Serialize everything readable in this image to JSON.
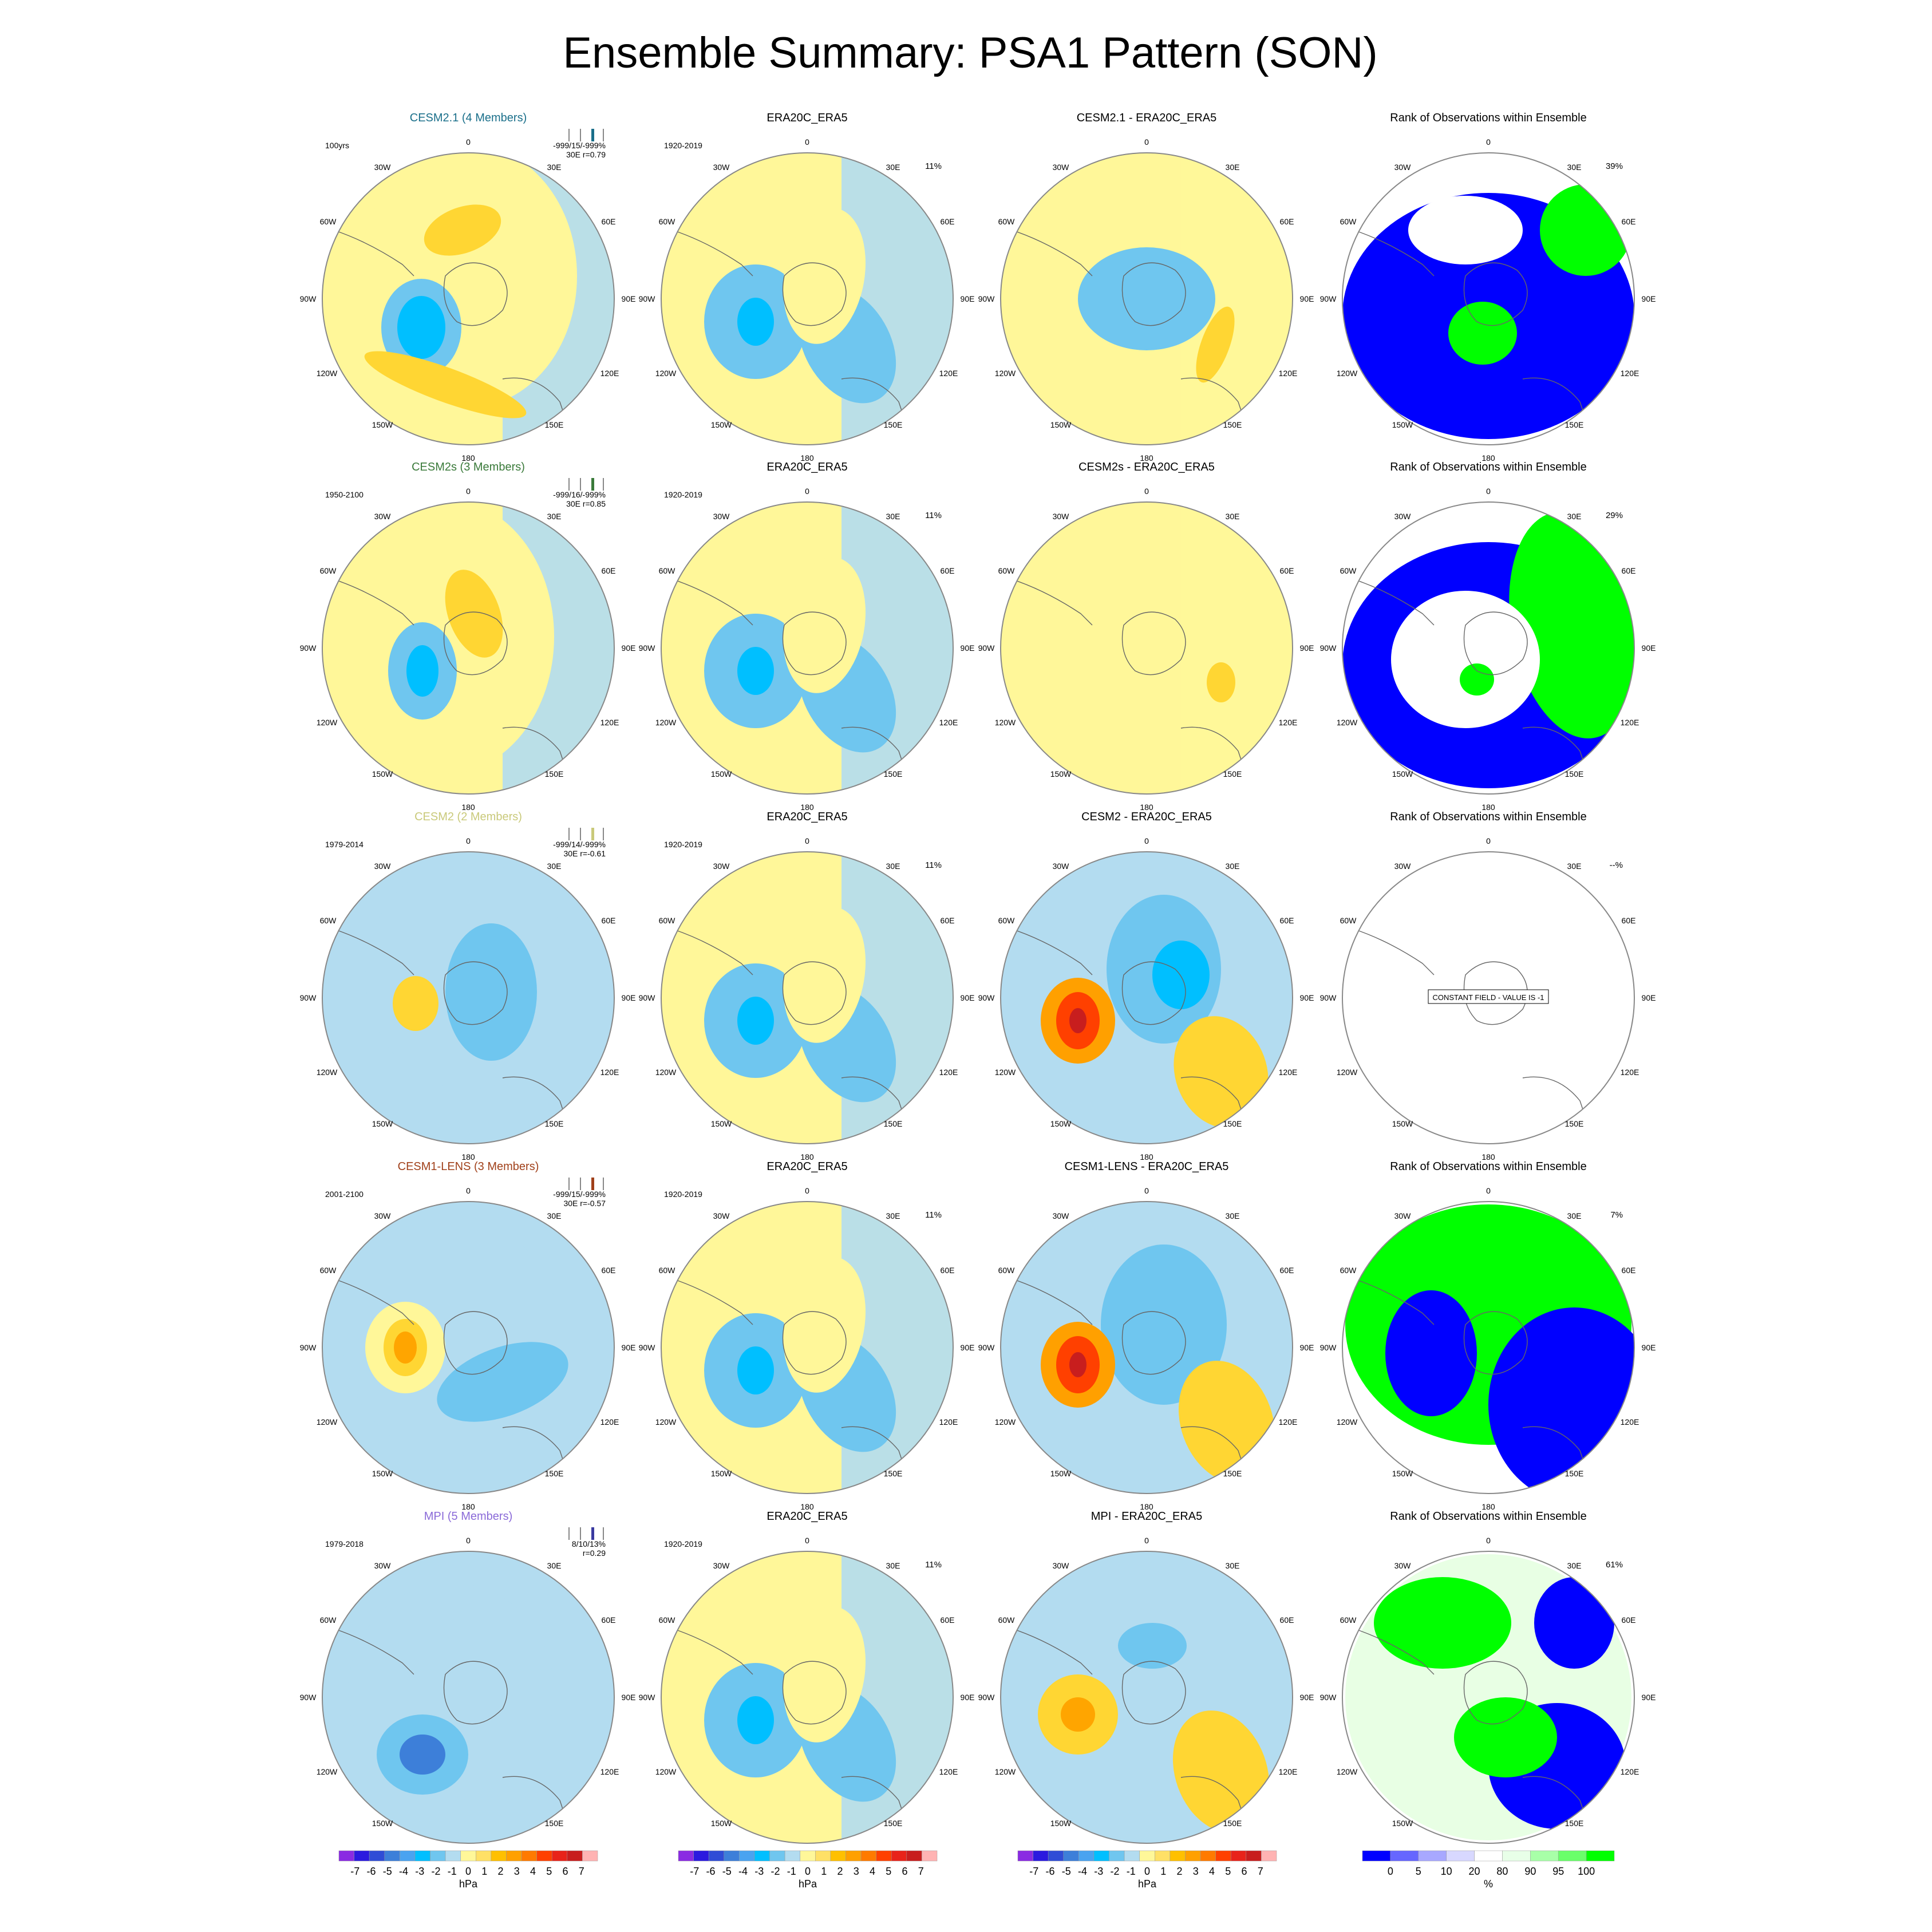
{
  "title": "Ensemble Summary: PSA1 Pattern (SON)",
  "colors": {
    "ocean_light_blue": "#b3dcf0",
    "pale_yellow": "#fff799",
    "orange_light": "#ffd633",
    "orange": "#ffa500",
    "rank_blue": "#0000ff",
    "rank_green": "#00ff00",
    "rank_pale_green": "#e8ffe4"
  },
  "map_labels": {
    "lon_0": "0",
    "lon_30w": "30W",
    "lon_30e": "30E",
    "lon_60w": "60W",
    "lon_60e": "60E",
    "lon_90w": "90W",
    "lon_90e": "90E",
    "lon_120w": "120W",
    "lon_120e": "120E",
    "lon_150w": "150W",
    "lon_150e": "150E",
    "lon_180": "180"
  },
  "rows": [
    {
      "model": {
        "title": "CESM2.1 (4 Members)",
        "title_color": "#1a6f8a",
        "period": "100yrs",
        "stats_line1": "-999/15/-999%",
        "stats_line2": "30E r=0.79",
        "bar_color": "#1a6f8a"
      },
      "obs": {
        "title": "ERA20C_ERA5",
        "period": "1920-2019",
        "pct": "11%"
      },
      "diff": {
        "title": "CESM2.1 - ERA20C_ERA5"
      },
      "rank": {
        "title": "Rank of Observations within Ensemble",
        "pct": "39%"
      }
    },
    {
      "model": {
        "title": "CESM2s (3 Members)",
        "title_color": "#3a7a3a",
        "period": "1950-2100",
        "stats_line1": "-999/16/-999%",
        "stats_line2": "30E r=0.85",
        "bar_color": "#3a7a3a"
      },
      "obs": {
        "title": "ERA20C_ERA5",
        "period": "1920-2019",
        "pct": "11%"
      },
      "diff": {
        "title": "CESM2s - ERA20C_ERA5"
      },
      "rank": {
        "title": "Rank of Observations within Ensemble",
        "pct": "29%"
      }
    },
    {
      "model": {
        "title": "CESM2 (2 Members)",
        "title_color": "#c9c97a",
        "period": "1979-2014",
        "stats_line1": "-999/14/-999%",
        "stats_line2": "30E r=-0.61",
        "bar_color": "#c9c97a"
      },
      "obs": {
        "title": "ERA20C_ERA5",
        "period": "1920-2019",
        "pct": "11%"
      },
      "diff": {
        "title": "CESM2 - ERA20C_ERA5"
      },
      "rank": {
        "title": "Rank of Observations within Ensemble",
        "pct": "--%",
        "note": "CONSTANT FIELD - VALUE IS -1"
      }
    },
    {
      "model": {
        "title": "CESM1-LENS (3 Members)",
        "title_color": "#a0401a",
        "period": "2001-2100",
        "stats_line1": "-999/15/-999%",
        "stats_line2": "30E r=-0.57",
        "bar_color": "#a0401a"
      },
      "obs": {
        "title": "ERA20C_ERA5",
        "period": "1920-2019",
        "pct": "11%"
      },
      "diff": {
        "title": "CESM1-LENS - ERA20C_ERA5"
      },
      "rank": {
        "title": "Rank of Observations within Ensemble",
        "pct": "7%"
      }
    },
    {
      "model": {
        "title": "MPI (5 Members)",
        "title_color": "#8a6ad8",
        "period": "1979-2018",
        "stats_line1": "8/10/13%",
        "stats_line2": "r=0.29",
        "bar_color": "#3a3aa0"
      },
      "obs": {
        "title": "ERA20C_ERA5",
        "period": "1920-2019",
        "pct": "11%"
      },
      "diff": {
        "title": "MPI - ERA20C_ERA5"
      },
      "rank": {
        "title": "Rank of Observations within Ensemble",
        "pct": "61%"
      }
    }
  ],
  "colorbars": {
    "hpa": {
      "unit": "hPa",
      "labels": [
        "-7",
        "-6",
        "-5",
        "-4",
        "-3",
        "-2",
        "-1",
        "0",
        "1",
        "2",
        "3",
        "4",
        "5",
        "6",
        "7"
      ],
      "colors": [
        "#8a2be2",
        "#2b1adf",
        "#2f4cd6",
        "#3d7fd9",
        "#4aa3f0",
        "#00bfff",
        "#6fc6ef",
        "#b3dcf0",
        "#fff799",
        "#ffe066",
        "#ffc000",
        "#ffa000",
        "#ff7a00",
        "#ff4000",
        "#e8231a",
        "#c81e1e",
        "#ffb3b3"
      ]
    },
    "rank": {
      "unit": "%",
      "labels": [
        "0",
        "5",
        "10",
        "20",
        "80",
        "90",
        "95",
        "100"
      ],
      "colors": [
        "#0000ff",
        "#6666ff",
        "#a8a8ff",
        "#d8d8ff",
        "#ffffff",
        "#e8ffe8",
        "#a8ffa8",
        "#6aff6a",
        "#00ff00"
      ]
    }
  },
  "chart_data": {
    "type": "heatmap",
    "title": "Ensemble Summary: PSA1 Pattern (SON)",
    "colorbar_levels_hpa": [
      -7,
      -6,
      -5,
      -4,
      -3,
      -2,
      -1,
      0,
      1,
      2,
      3,
      4,
      5,
      6,
      7
    ],
    "colorbar_levels_rank_pct": [
      0,
      5,
      10,
      20,
      80,
      90,
      95,
      100
    ],
    "rank_percent_by_model": {
      "CESM2.1 (4 Members)": 39,
      "CESM2s (3 Members)": 29,
      "CESM2 (2 Members)": null,
      "CESM1-LENS (3 Members)": 7,
      "MPI (5 Members)": 61
    },
    "pattern_correlation_by_model": {
      "CESM2.1 (4 Members)": 0.79,
      "CESM2s (3 Members)": 0.85,
      "CESM2 (2 Members)": -0.61,
      "CESM1-LENS (3 Members)": -0.57,
      "MPI (5 Members)": 0.29
    },
    "explained_variance_pct_obs": 11
  }
}
